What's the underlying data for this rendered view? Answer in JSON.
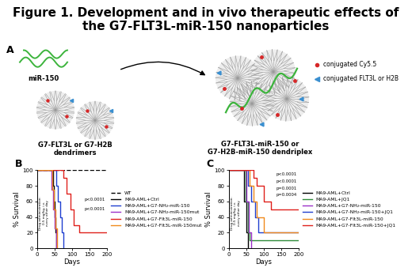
{
  "figure_title": "Figure 1. Development and in vivo therapeutic effects of the G7-FLT3L-miR-150 nanoparticles",
  "panel_a": {
    "letter": "A",
    "mirna_label": "miR-150",
    "dendrimer_label": "G7-FLT3L or G7-H2B\ndendrimers",
    "dendriplex_label": "G7-FLT3L-miR-150 or\nG7-H2B-miR-150 dendriplex",
    "keys": [
      {
        "text": "conjugated Cy5.5",
        "color": "#d62728"
      },
      {
        "text": "conjugated FLT3L or H2B",
        "color": "#3a8fd0"
      }
    ]
  },
  "chart_data": [
    {
      "type": "step",
      "panel_label": "B",
      "x_label": "Days",
      "y_label": "% Survival",
      "xlim": [
        0,
        200
      ],
      "ylim": [
        0,
        100
      ],
      "xticks": [
        0,
        50,
        100,
        150,
        200
      ],
      "yticks": [
        0,
        20,
        40,
        60,
        80,
        100
      ],
      "legend": "center left",
      "drug_note": "Drug administration:\n0.5 mg/kg, i.v.\nevery other day",
      "p_values": [
        "p<0.0001",
        "p<0.0001"
      ],
      "series": [
        {
          "name": "WT",
          "color": "#000000",
          "line_style": "dashed",
          "x": [
            0,
            200
          ],
          "values": [
            100,
            100
          ]
        },
        {
          "name": "MA9-AML+Ctrl",
          "color": "#000000",
          "line_style": "solid",
          "x": [
            0,
            45,
            48,
            50,
            53,
            55
          ],
          "values": [
            100,
            80,
            60,
            40,
            20,
            0
          ]
        },
        {
          "name": "MA9-AML+G7-NH₂-miR-150",
          "color": "#1f3fd0",
          "line_style": "solid",
          "x": [
            0,
            55,
            60,
            65,
            70,
            75
          ],
          "values": [
            100,
            80,
            60,
            40,
            20,
            0
          ]
        },
        {
          "name": "MA9-AML+G7-NH₂-miR-150mut",
          "color": "#9b30c8",
          "line_style": "solid",
          "x": [
            0,
            42,
            46,
            50,
            54
          ],
          "values": [
            100,
            75,
            50,
            25,
            0
          ]
        },
        {
          "name": "MA9-AML+G7-Flt3L-miR-150",
          "color": "#e0201b",
          "line_style": "solid",
          "x": [
            0,
            75,
            85,
            95,
            105,
            120,
            200
          ],
          "values": [
            100,
            90,
            70,
            50,
            30,
            20,
            20
          ]
        },
        {
          "name": "MA9-AML+G7-Flt3L-miR-150mut",
          "color": "#f08a1c",
          "line_style": "solid",
          "x": [
            0,
            44,
            48,
            52,
            56
          ],
          "values": [
            100,
            75,
            50,
            25,
            0
          ]
        }
      ]
    },
    {
      "type": "step",
      "panel_label": "C",
      "x_label": "Days",
      "y_label": "% Survival",
      "xlim": [
        0,
        200
      ],
      "ylim": [
        0,
        100
      ],
      "xticks": [
        0,
        50,
        100,
        150,
        200
      ],
      "yticks": [
        0,
        20,
        40,
        60,
        80,
        100
      ],
      "legend": "center left",
      "drug_note": "Drug administration:\n0.5 mg/kg, i.v.\nevery other day",
      "p_values": [
        "p<0.0001",
        "p<0.0001",
        "p=0.0001",
        "p=0.0004"
      ],
      "series": [
        {
          "name": "MA9-AML+Ctrl",
          "color": "#000000",
          "line_style": "solid",
          "x": [
            0,
            45,
            50,
            55
          ],
          "values": [
            100,
            60,
            20,
            0
          ]
        },
        {
          "name": "MA9-AML+JQ1",
          "color": "#2e8b3a",
          "line_style": "solid",
          "x": [
            0,
            48,
            55,
            60,
            200
          ],
          "values": [
            100,
            60,
            20,
            10,
            10
          ]
        },
        {
          "name": "MA9-AML+G7-NH₂-miR-150",
          "color": "#9b30c8",
          "line_style": "solid",
          "x": [
            0,
            50,
            58,
            65
          ],
          "values": [
            100,
            60,
            20,
            0
          ]
        },
        {
          "name": "MA9-AML+G7-NH₂-miR-150+JQ1",
          "color": "#1f3fd0",
          "line_style": "solid",
          "x": [
            0,
            55,
            65,
            75,
            85,
            200
          ],
          "values": [
            100,
            80,
            60,
            40,
            20,
            20
          ]
        },
        {
          "name": "MA9-AML+G7-Flt3L-miR-150",
          "color": "#f08a1c",
          "line_style": "solid",
          "x": [
            0,
            60,
            70,
            80,
            100,
            200
          ],
          "values": [
            100,
            80,
            60,
            40,
            20,
            20
          ]
        },
        {
          "name": "MA9-AML+G7-Flt3L-miR-150+JQ1",
          "color": "#e0201b",
          "line_style": "solid",
          "x": [
            0,
            70,
            80,
            100,
            120,
            150,
            200
          ],
          "values": [
            100,
            90,
            80,
            60,
            50,
            50,
            50
          ]
        }
      ]
    }
  ]
}
